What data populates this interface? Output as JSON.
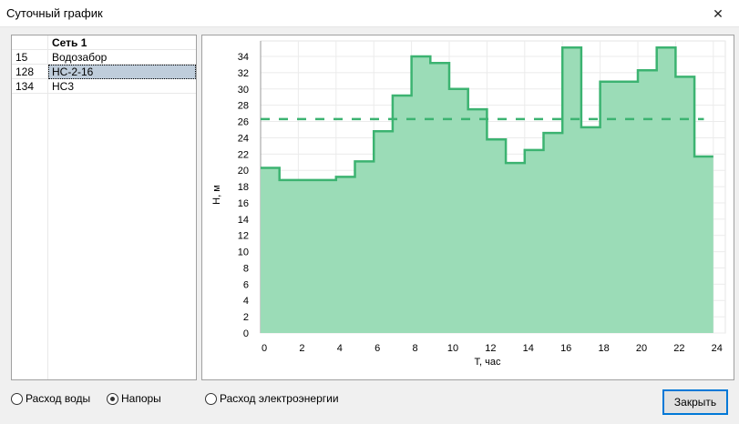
{
  "window": {
    "title": "Суточный график",
    "close_icon": "close-icon"
  },
  "table": {
    "header": [
      "",
      "Сеть 1"
    ],
    "rows": [
      {
        "id": "15",
        "name": "Водозабор"
      },
      {
        "id": "128",
        "name": "НС-2-16",
        "selected": true
      },
      {
        "id": "134",
        "name": "НС3"
      }
    ]
  },
  "options": {
    "water": "Расход воды",
    "pressure": "Напоры",
    "energy": "Расход электроэнергии",
    "selected": "pressure"
  },
  "close_button": "Закрыть",
  "chart_data": {
    "type": "area",
    "step": true,
    "xlabel": "T, час",
    "ylabel": "H, м",
    "xlim": [
      0,
      24
    ],
    "ylim": [
      0,
      35
    ],
    "xticks": [
      "0",
      "2",
      "4",
      "6",
      "8",
      "10",
      "12",
      "14",
      "16",
      "18",
      "20",
      "22",
      "24"
    ],
    "yticks": [
      "0",
      "2",
      "4",
      "6",
      "8",
      "10",
      "12",
      "14",
      "16",
      "18",
      "20",
      "22",
      "24",
      "26",
      "28",
      "30",
      "32",
      "34"
    ],
    "hours": [
      0,
      1,
      2,
      3,
      4,
      5,
      6,
      7,
      8,
      9,
      10,
      11,
      12,
      13,
      14,
      15,
      16,
      17,
      18,
      19,
      20,
      21,
      22,
      23
    ],
    "values": [
      20.3,
      18.8,
      18.8,
      18.8,
      19.2,
      21.1,
      24.8,
      29.2,
      34.0,
      33.2,
      30.0,
      27.5,
      23.8,
      20.9,
      22.5,
      24.6,
      35.1,
      25.3,
      30.9,
      30.9,
      32.3,
      35.1,
      31.5,
      21.7
    ],
    "average": 26.3,
    "grid": true,
    "fill_color": "#9bdcb7",
    "line_color": "#3cb371"
  }
}
